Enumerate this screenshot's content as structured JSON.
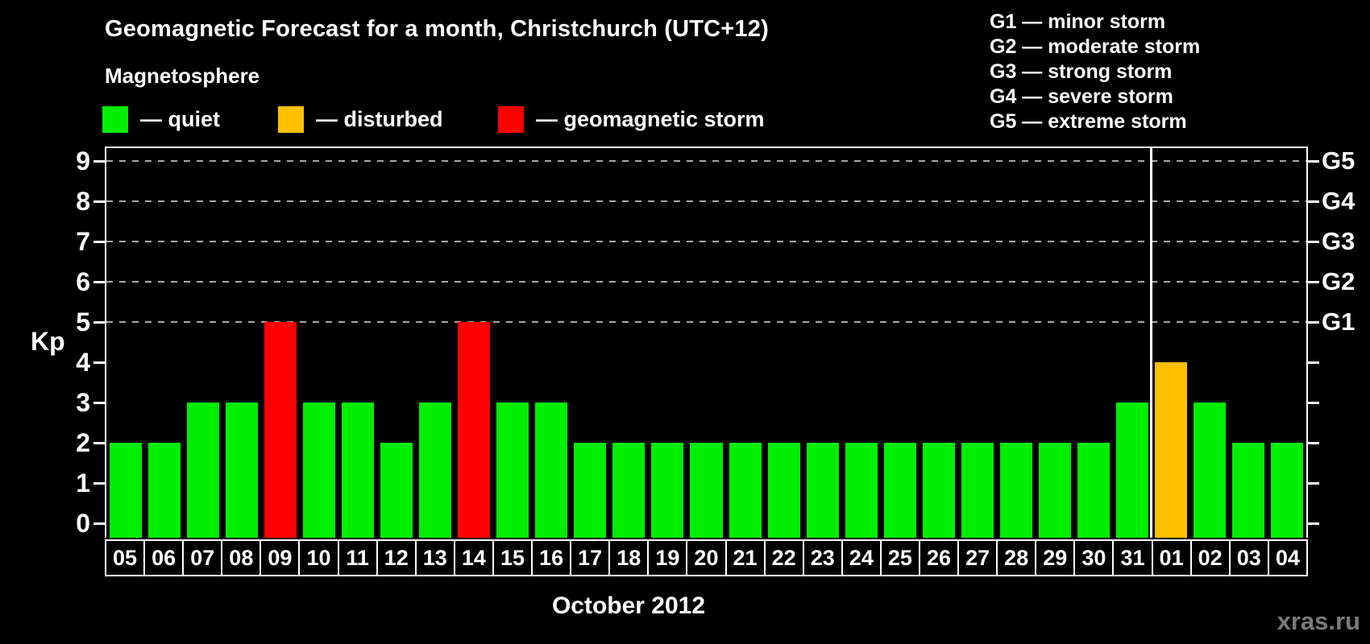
{
  "title": "Geomagnetic Forecast for a month, Christchurch (UTC+12)",
  "legend": {
    "heading": "Magnetosphere",
    "items": [
      {
        "name": "quiet",
        "label": "— quiet",
        "color": "#00ee00"
      },
      {
        "name": "disturbed",
        "label": "— disturbed",
        "color": "#ffc000"
      },
      {
        "name": "storm",
        "label": "— geomagnetic storm",
        "color": "#ff0000"
      }
    ]
  },
  "storm_scale": [
    {
      "text": "G1 — minor storm"
    },
    {
      "text": "G2 — moderate storm"
    },
    {
      "text": "G3 — strong storm"
    },
    {
      "text": "G4 — severe storm"
    },
    {
      "text": "G5 — extreme storm"
    }
  ],
  "chart_data": {
    "type": "bar",
    "title": "Geomagnetic Forecast for a month, Christchurch (UTC+12)",
    "xlabel": "October 2012",
    "ylabel": "Kp",
    "ylim": [
      0,
      9
    ],
    "yticks": [
      0,
      1,
      2,
      3,
      4,
      5,
      6,
      7,
      8,
      9
    ],
    "gridlines_at": [
      5,
      6,
      7,
      8,
      9
    ],
    "grid": "dashed horizontal at G-storm levels",
    "legend_position": "top",
    "right_axis": [
      {
        "kp": 5,
        "label": "G1"
      },
      {
        "kp": 6,
        "label": "G2"
      },
      {
        "kp": 7,
        "label": "G3"
      },
      {
        "kp": 8,
        "label": "G4"
      },
      {
        "kp": 9,
        "label": "G5"
      }
    ],
    "categories": [
      "05",
      "06",
      "07",
      "08",
      "09",
      "10",
      "11",
      "12",
      "13",
      "14",
      "15",
      "16",
      "17",
      "18",
      "19",
      "20",
      "21",
      "22",
      "23",
      "24",
      "25",
      "26",
      "27",
      "28",
      "29",
      "30",
      "31",
      "01",
      "02",
      "03",
      "04"
    ],
    "values": [
      2,
      2,
      3,
      3,
      5,
      3,
      3,
      2,
      3,
      5,
      3,
      3,
      2,
      2,
      2,
      2,
      2,
      2,
      2,
      2,
      2,
      2,
      2,
      2,
      2,
      2,
      3,
      4,
      3,
      2,
      2
    ],
    "statuses": [
      "quiet",
      "quiet",
      "quiet",
      "quiet",
      "storm",
      "quiet",
      "quiet",
      "quiet",
      "quiet",
      "storm",
      "quiet",
      "quiet",
      "quiet",
      "quiet",
      "quiet",
      "quiet",
      "quiet",
      "quiet",
      "quiet",
      "quiet",
      "quiet",
      "quiet",
      "quiet",
      "quiet",
      "quiet",
      "quiet",
      "quiet",
      "disturbed",
      "quiet",
      "quiet",
      "quiet"
    ],
    "month_separator_after_index": 26,
    "colors": {
      "quiet": "#00ee00",
      "disturbed": "#ffc000",
      "storm": "#ff0000"
    }
  },
  "watermark": "xras.ru"
}
